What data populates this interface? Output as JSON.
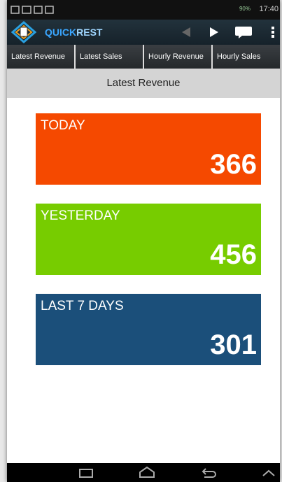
{
  "status_bar": {
    "battery": "90%",
    "time": "17:40"
  },
  "app_bar": {
    "title_part1": "QUICK",
    "title_part2": "REST"
  },
  "tabs": [
    "Latest Revenue",
    "Latest Sales",
    "Hourly Revenue",
    "Hourly Sales"
  ],
  "header": {
    "title": "Latest Revenue"
  },
  "cards": [
    {
      "label": "TODAY",
      "value": "366",
      "color": "#f54900"
    },
    {
      "label": "YESTERDAY",
      "value": "456",
      "color": "#77cc00"
    },
    {
      "label": "LAST 7 DAYS",
      "value": "301",
      "color": "#1b4f7a"
    }
  ]
}
